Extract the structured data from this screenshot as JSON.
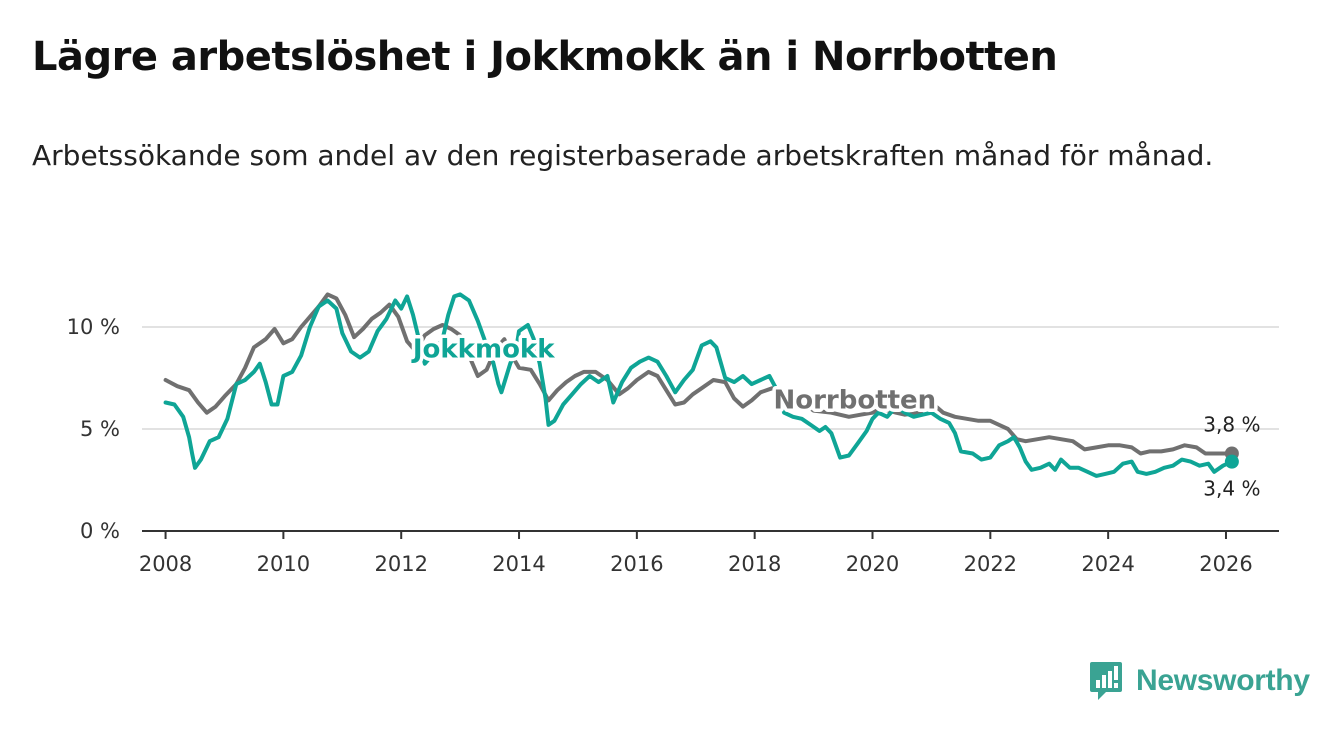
{
  "title": "Lägre arbetslöshet i Jokkmokk än i Norrbotten",
  "subtitle": "Arbetssökande som andel av den registerbaserade arbetskraften månad för månad.",
  "brand": {
    "name": "Newsworthy",
    "icon": "newsworthy-logo-icon"
  },
  "colors": {
    "jokkmokk": "#0fa596",
    "norrbotten": "#707070",
    "grid": "#d9d9d9",
    "axis": "#333333"
  },
  "chart_data": {
    "type": "line",
    "title": "Lägre arbetslöshet i Jokkmokk än i Norrbotten",
    "xlabel": "",
    "ylabel": "",
    "xlim": [
      2007.6,
      2026.9
    ],
    "ylim": [
      0,
      12.5
    ],
    "x_ticks": [
      2008,
      2010,
      2012,
      2014,
      2016,
      2018,
      2020,
      2022,
      2024,
      2026
    ],
    "x_tick_labels": [
      "2008",
      "2010",
      "2012",
      "2014",
      "2016",
      "2018",
      "2020",
      "2022",
      "2024",
      "2026"
    ],
    "y_ticks": [
      0,
      5,
      10
    ],
    "y_tick_labels": [
      "0 %",
      "5 %",
      "10 %"
    ],
    "grid": true,
    "series": [
      {
        "name": "Norrbotten",
        "label": "Norrbotten",
        "color": "#707070",
        "end_label": "3,8 %",
        "points": [
          [
            2008.0,
            7.4
          ],
          [
            2008.2,
            7.1
          ],
          [
            2008.4,
            6.9
          ],
          [
            2008.55,
            6.3
          ],
          [
            2008.7,
            5.8
          ],
          [
            2008.85,
            6.1
          ],
          [
            2009.0,
            6.6
          ],
          [
            2009.2,
            7.2
          ],
          [
            2009.35,
            8.0
          ],
          [
            2009.5,
            9.0
          ],
          [
            2009.7,
            9.4
          ],
          [
            2009.85,
            9.9
          ],
          [
            2010.0,
            9.2
          ],
          [
            2010.15,
            9.4
          ],
          [
            2010.3,
            10.0
          ],
          [
            2010.45,
            10.5
          ],
          [
            2010.6,
            11.0
          ],
          [
            2010.75,
            11.6
          ],
          [
            2010.9,
            11.4
          ],
          [
            2011.05,
            10.6
          ],
          [
            2011.2,
            9.5
          ],
          [
            2011.35,
            9.9
          ],
          [
            2011.5,
            10.4
          ],
          [
            2011.65,
            10.7
          ],
          [
            2011.8,
            11.1
          ],
          [
            2011.95,
            10.5
          ],
          [
            2012.1,
            9.3
          ],
          [
            2012.25,
            8.8
          ],
          [
            2012.4,
            9.6
          ],
          [
            2012.55,
            9.9
          ],
          [
            2012.7,
            10.1
          ],
          [
            2012.85,
            9.9
          ],
          [
            2013.0,
            9.6
          ],
          [
            2013.15,
            8.6
          ],
          [
            2013.3,
            7.6
          ],
          [
            2013.45,
            7.9
          ],
          [
            2013.6,
            8.9
          ],
          [
            2013.75,
            9.4
          ],
          [
            2013.9,
            8.5
          ],
          [
            2014.0,
            8.0
          ],
          [
            2014.2,
            7.9
          ],
          [
            2014.35,
            7.2
          ],
          [
            2014.5,
            6.4
          ],
          [
            2014.65,
            6.9
          ],
          [
            2014.8,
            7.3
          ],
          [
            2014.95,
            7.6
          ],
          [
            2015.1,
            7.8
          ],
          [
            2015.3,
            7.8
          ],
          [
            2015.5,
            7.4
          ],
          [
            2015.7,
            6.7
          ],
          [
            2015.85,
            7.0
          ],
          [
            2016.0,
            7.4
          ],
          [
            2016.2,
            7.8
          ],
          [
            2016.35,
            7.6
          ],
          [
            2016.5,
            6.9
          ],
          [
            2016.65,
            6.2
          ],
          [
            2016.8,
            6.3
          ],
          [
            2016.95,
            6.7
          ],
          [
            2017.1,
            7.0
          ],
          [
            2017.3,
            7.4
          ],
          [
            2017.5,
            7.3
          ],
          [
            2017.65,
            6.5
          ],
          [
            2017.8,
            6.1
          ],
          [
            2017.95,
            6.4
          ],
          [
            2018.1,
            6.8
          ],
          [
            2018.3,
            7.0
          ],
          [
            2018.5,
            6.7
          ],
          [
            2018.65,
            6.4
          ],
          [
            2018.8,
            6.3
          ],
          [
            2019.0,
            5.9
          ],
          [
            2019.3,
            5.8
          ],
          [
            2019.6,
            5.6
          ],
          [
            2019.8,
            5.7
          ],
          [
            2020.0,
            5.8
          ],
          [
            2020.15,
            6.0
          ],
          [
            2020.4,
            5.8
          ],
          [
            2020.55,
            5.7
          ],
          [
            2020.8,
            5.8
          ],
          [
            2021.0,
            6.3
          ],
          [
            2021.2,
            5.8
          ],
          [
            2021.4,
            5.6
          ],
          [
            2021.6,
            5.5
          ],
          [
            2021.8,
            5.4
          ],
          [
            2022.0,
            5.4
          ],
          [
            2022.15,
            5.2
          ],
          [
            2022.3,
            5.0
          ],
          [
            2022.45,
            4.5
          ],
          [
            2022.6,
            4.4
          ],
          [
            2022.8,
            4.5
          ],
          [
            2023.0,
            4.6
          ],
          [
            2023.2,
            4.5
          ],
          [
            2023.4,
            4.4
          ],
          [
            2023.6,
            4.0
          ],
          [
            2023.8,
            4.1
          ],
          [
            2024.0,
            4.2
          ],
          [
            2024.2,
            4.2
          ],
          [
            2024.4,
            4.1
          ],
          [
            2024.55,
            3.8
          ],
          [
            2024.7,
            3.9
          ],
          [
            2024.9,
            3.9
          ],
          [
            2025.1,
            4.0
          ],
          [
            2025.3,
            4.2
          ],
          [
            2025.5,
            4.1
          ],
          [
            2025.65,
            3.8
          ],
          [
            2025.8,
            3.8
          ],
          [
            2025.95,
            3.8
          ],
          [
            2026.1,
            3.8
          ]
        ]
      },
      {
        "name": "Jokkmokk",
        "label": "Jokkmokk",
        "color": "#0fa596",
        "end_label": "3,4 %",
        "points": [
          [
            2008.0,
            6.3
          ],
          [
            2008.15,
            6.2
          ],
          [
            2008.3,
            5.6
          ],
          [
            2008.4,
            4.6
          ],
          [
            2008.45,
            3.8
          ],
          [
            2008.5,
            3.1
          ],
          [
            2008.6,
            3.5
          ],
          [
            2008.75,
            4.4
          ],
          [
            2008.9,
            4.6
          ],
          [
            2009.05,
            5.5
          ],
          [
            2009.2,
            7.2
          ],
          [
            2009.35,
            7.4
          ],
          [
            2009.5,
            7.8
          ],
          [
            2009.6,
            8.2
          ],
          [
            2009.7,
            7.3
          ],
          [
            2009.8,
            6.2
          ],
          [
            2009.9,
            6.2
          ],
          [
            2010.0,
            7.6
          ],
          [
            2010.15,
            7.8
          ],
          [
            2010.3,
            8.6
          ],
          [
            2010.45,
            10.0
          ],
          [
            2010.6,
            11.0
          ],
          [
            2010.75,
            11.3
          ],
          [
            2010.9,
            10.9
          ],
          [
            2011.0,
            9.7
          ],
          [
            2011.15,
            8.8
          ],
          [
            2011.3,
            8.5
          ],
          [
            2011.45,
            8.8
          ],
          [
            2011.6,
            9.8
          ],
          [
            2011.75,
            10.4
          ],
          [
            2011.9,
            11.3
          ],
          [
            2012.0,
            10.9
          ],
          [
            2012.1,
            11.5
          ],
          [
            2012.2,
            10.6
          ],
          [
            2012.3,
            9.4
          ],
          [
            2012.4,
            8.2
          ],
          [
            2012.55,
            8.7
          ],
          [
            2012.7,
            9.4
          ],
          [
            2012.8,
            10.6
          ],
          [
            2012.9,
            11.5
          ],
          [
            2013.0,
            11.6
          ],
          [
            2013.15,
            11.3
          ],
          [
            2013.3,
            10.3
          ],
          [
            2013.45,
            9.1
          ],
          [
            2013.55,
            8.4
          ],
          [
            2013.6,
            7.8
          ],
          [
            2013.65,
            7.2
          ],
          [
            2013.7,
            6.8
          ],
          [
            2013.85,
            8.2
          ],
          [
            2013.95,
            8.9
          ],
          [
            2014.0,
            9.8
          ],
          [
            2014.15,
            10.1
          ],
          [
            2014.25,
            9.4
          ],
          [
            2014.35,
            8.2
          ],
          [
            2014.45,
            6.5
          ],
          [
            2014.5,
            5.2
          ],
          [
            2014.6,
            5.4
          ],
          [
            2014.75,
            6.2
          ],
          [
            2014.9,
            6.7
          ],
          [
            2015.05,
            7.2
          ],
          [
            2015.2,
            7.6
          ],
          [
            2015.35,
            7.3
          ],
          [
            2015.5,
            7.6
          ],
          [
            2015.6,
            6.3
          ],
          [
            2015.75,
            7.3
          ],
          [
            2015.9,
            8.0
          ],
          [
            2016.05,
            8.3
          ],
          [
            2016.2,
            8.5
          ],
          [
            2016.35,
            8.3
          ],
          [
            2016.5,
            7.6
          ],
          [
            2016.65,
            6.8
          ],
          [
            2016.8,
            7.4
          ],
          [
            2016.95,
            7.9
          ],
          [
            2017.1,
            9.1
          ],
          [
            2017.25,
            9.3
          ],
          [
            2017.35,
            9.0
          ],
          [
            2017.5,
            7.5
          ],
          [
            2017.65,
            7.3
          ],
          [
            2017.8,
            7.6
          ],
          [
            2017.95,
            7.2
          ],
          [
            2018.1,
            7.4
          ],
          [
            2018.25,
            7.6
          ],
          [
            2018.4,
            6.8
          ],
          [
            2018.5,
            5.8
          ],
          [
            2018.65,
            5.6
          ],
          [
            2018.8,
            5.5
          ],
          [
            2018.95,
            5.2
          ],
          [
            2019.1,
            4.9
          ],
          [
            2019.2,
            5.1
          ],
          [
            2019.3,
            4.8
          ],
          [
            2019.45,
            3.6
          ],
          [
            2019.6,
            3.7
          ],
          [
            2019.75,
            4.3
          ],
          [
            2019.9,
            4.9
          ],
          [
            2020.0,
            5.5
          ],
          [
            2020.1,
            5.8
          ],
          [
            2020.25,
            5.6
          ],
          [
            2020.4,
            6.1
          ],
          [
            2020.55,
            5.8
          ],
          [
            2020.7,
            5.6
          ],
          [
            2020.85,
            5.7
          ],
          [
            2021.0,
            5.8
          ],
          [
            2021.15,
            5.5
          ],
          [
            2021.3,
            5.3
          ],
          [
            2021.4,
            4.8
          ],
          [
            2021.5,
            3.9
          ],
          [
            2021.7,
            3.8
          ],
          [
            2021.85,
            3.5
          ],
          [
            2022.0,
            3.6
          ],
          [
            2022.15,
            4.2
          ],
          [
            2022.3,
            4.4
          ],
          [
            2022.4,
            4.6
          ],
          [
            2022.5,
            4.1
          ],
          [
            2022.6,
            3.4
          ],
          [
            2022.7,
            3.0
          ],
          [
            2022.85,
            3.1
          ],
          [
            2023.0,
            3.3
          ],
          [
            2023.1,
            3.0
          ],
          [
            2023.2,
            3.5
          ],
          [
            2023.35,
            3.1
          ],
          [
            2023.5,
            3.1
          ],
          [
            2023.65,
            2.9
          ],
          [
            2023.8,
            2.7
          ],
          [
            2023.95,
            2.8
          ],
          [
            2024.1,
            2.9
          ],
          [
            2024.25,
            3.3
          ],
          [
            2024.4,
            3.4
          ],
          [
            2024.5,
            2.9
          ],
          [
            2024.65,
            2.8
          ],
          [
            2024.8,
            2.9
          ],
          [
            2024.95,
            3.1
          ],
          [
            2025.1,
            3.2
          ],
          [
            2025.25,
            3.5
          ],
          [
            2025.4,
            3.4
          ],
          [
            2025.55,
            3.2
          ],
          [
            2025.7,
            3.3
          ],
          [
            2025.8,
            2.9
          ],
          [
            2025.95,
            3.2
          ],
          [
            2026.1,
            3.4
          ]
        ]
      }
    ]
  }
}
